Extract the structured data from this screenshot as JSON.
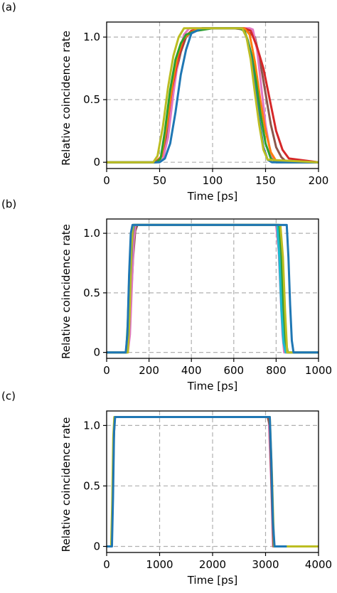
{
  "chart_data": [
    {
      "type": "line",
      "panel_label": "(a)",
      "xlabel": "Time [ps]",
      "ylabel": "Relative coincidence rate",
      "xlim": [
        0,
        200
      ],
      "ylim": [
        -0.05,
        1.12
      ],
      "xticks": [
        0,
        50,
        100,
        150,
        200
      ],
      "xtick_labels": [
        "0",
        "50",
        "100",
        "150",
        "200"
      ],
      "yticks": [
        0,
        0.5,
        1.0
      ],
      "ytick_labels": [
        "0",
        "0.5",
        "1.0"
      ],
      "grid": true,
      "series": [
        {
          "color": "#8c564b",
          "x": [
            0,
            45,
            50,
            55,
            60,
            65,
            70,
            75,
            80,
            90,
            100,
            110,
            120,
            130,
            140,
            145,
            150,
            155,
            160,
            165,
            170,
            200
          ],
          "y": [
            0,
            0,
            0.02,
            0.12,
            0.45,
            0.7,
            0.88,
            1.0,
            1.04,
            1.07,
            1.07,
            1.07,
            1.07,
            1.06,
            1.0,
            0.8,
            0.55,
            0.3,
            0.12,
            0.04,
            0,
            0
          ]
        },
        {
          "color": "#e377c2",
          "x": [
            0,
            48,
            53,
            58,
            63,
            68,
            73,
            78,
            85,
            100,
            115,
            130,
            135,
            138,
            142,
            146,
            150,
            155,
            160,
            200
          ],
          "y": [
            0,
            0,
            0.02,
            0.2,
            0.55,
            0.85,
            1.02,
            1.07,
            1.07,
            1.07,
            1.07,
            1.07,
            1.07,
            1.06,
            0.9,
            0.6,
            0.3,
            0.06,
            0,
            0
          ]
        },
        {
          "color": "#d62728",
          "x": [
            0,
            46,
            52,
            57,
            62,
            68,
            74,
            80,
            90,
            100,
            110,
            120,
            130,
            136,
            142,
            148,
            154,
            160,
            166,
            172,
            200
          ],
          "y": [
            0,
            0,
            0.05,
            0.3,
            0.6,
            0.85,
            1.0,
            1.05,
            1.07,
            1.07,
            1.07,
            1.07,
            1.07,
            1.05,
            0.92,
            0.75,
            0.5,
            0.25,
            0.1,
            0.03,
            0
          ]
        },
        {
          "color": "#ff7f0e",
          "x": [
            0,
            47,
            52,
            57,
            62,
            67,
            72,
            78,
            85,
            95,
            105,
            115,
            125,
            130,
            135,
            140,
            145,
            150,
            155,
            160,
            200
          ],
          "y": [
            0,
            0,
            0.05,
            0.3,
            0.62,
            0.85,
            0.98,
            1.03,
            1.06,
            1.07,
            1.07,
            1.07,
            1.07,
            1.07,
            1.02,
            0.8,
            0.5,
            0.25,
            0.08,
            0.01,
            0
          ]
        },
        {
          "color": "#2ca02c",
          "x": [
            0,
            47,
            51,
            55,
            60,
            65,
            70,
            75,
            85,
            100,
            115,
            125,
            130,
            133,
            137,
            141,
            145,
            150,
            155,
            160,
            200
          ],
          "y": [
            0,
            0,
            0.03,
            0.25,
            0.58,
            0.82,
            0.95,
            1.02,
            1.05,
            1.07,
            1.07,
            1.07,
            1.05,
            0.98,
            0.85,
            0.65,
            0.4,
            0.15,
            0.03,
            0,
            0
          ]
        },
        {
          "color": "#1f77b4",
          "x": [
            0,
            50,
            55,
            60,
            65,
            70,
            75,
            80,
            90,
            100,
            110,
            120,
            128,
            132,
            136,
            140,
            144,
            148,
            152,
            156,
            200
          ],
          "y": [
            0,
            0,
            0.03,
            0.15,
            0.4,
            0.7,
            0.9,
            1.03,
            1.07,
            1.07,
            1.07,
            1.07,
            1.07,
            1.0,
            0.85,
            0.6,
            0.35,
            0.12,
            0.02,
            0,
            0
          ]
        },
        {
          "color": "#bcbd22",
          "x": [
            0,
            44,
            48,
            53,
            58,
            63,
            68,
            73,
            78,
            90,
            105,
            120,
            128,
            132,
            136,
            140,
            144,
            148,
            152,
            200
          ],
          "y": [
            0,
            0,
            0.05,
            0.28,
            0.6,
            0.85,
            1.0,
            1.07,
            1.07,
            1.07,
            1.07,
            1.07,
            1.07,
            1.0,
            0.82,
            0.55,
            0.3,
            0.1,
            0.02,
            0
          ]
        }
      ]
    },
    {
      "type": "line",
      "panel_label": "(b)",
      "xlabel": "Time [ps]",
      "ylabel": "Relative coincidence rate",
      "xlim": [
        0,
        1000
      ],
      "ylim": [
        -0.05,
        1.12
      ],
      "xticks": [
        0,
        200,
        400,
        600,
        800,
        1000
      ],
      "xtick_labels": [
        "0",
        "200",
        "400",
        "600",
        "800",
        "1000"
      ],
      "yticks": [
        0,
        0.5,
        1.0
      ],
      "ytick_labels": [
        "0",
        "0.5",
        "1.0"
      ],
      "grid": true,
      "series": [
        {
          "color": "#8c564b",
          "x": [
            0,
            95,
            105,
            115,
            125,
            135,
            145,
            800,
            815,
            825,
            835,
            845,
            1000
          ],
          "y": [
            0,
            0,
            0.1,
            0.45,
            0.8,
            1.02,
            1.07,
            1.07,
            0.9,
            0.5,
            0.2,
            0,
            0
          ]
        },
        {
          "color": "#e377c2",
          "x": [
            0,
            100,
            110,
            120,
            128,
            136,
            800,
            812,
            822,
            830,
            838,
            1000
          ],
          "y": [
            0,
            0,
            0.15,
            0.6,
            0.95,
            1.07,
            1.07,
            0.85,
            0.45,
            0.15,
            0,
            0
          ]
        },
        {
          "color": "#7f7f7f",
          "x": [
            0,
            98,
            106,
            114,
            122,
            130,
            810,
            822,
            832,
            842,
            852,
            1000
          ],
          "y": [
            0,
            0,
            0.2,
            0.65,
            0.97,
            1.07,
            1.07,
            0.8,
            0.4,
            0.1,
            0,
            0
          ]
        },
        {
          "color": "#2ca02c",
          "x": [
            0,
            92,
            100,
            108,
            116,
            124,
            815,
            825,
            835,
            845,
            855,
            1000
          ],
          "y": [
            0,
            0,
            0.25,
            0.7,
            1.0,
            1.07,
            1.07,
            0.85,
            0.4,
            0.1,
            0,
            0
          ]
        },
        {
          "color": "#17becf",
          "x": [
            0,
            95,
            103,
            111,
            119,
            127,
            805,
            815,
            825,
            835,
            845,
            1000
          ],
          "y": [
            0,
            0,
            0.2,
            0.68,
            1.0,
            1.07,
            1.07,
            0.8,
            0.35,
            0.08,
            0,
            0
          ]
        },
        {
          "color": "#bcbd22",
          "x": [
            0,
            100,
            108,
            116,
            124,
            820,
            832,
            842,
            852,
            1000
          ],
          "y": [
            0,
            0,
            0.3,
            0.85,
            1.07,
            1.07,
            0.8,
            0.35,
            0,
            0
          ]
        },
        {
          "color": "#1f77b4",
          "x": [
            0,
            90,
            98,
            106,
            114,
            122,
            850,
            858,
            866,
            874,
            882,
            1000
          ],
          "y": [
            0,
            0,
            0.15,
            0.65,
            1.0,
            1.07,
            1.07,
            0.8,
            0.4,
            0.1,
            0,
            0
          ]
        }
      ]
    },
    {
      "type": "line",
      "panel_label": "(c)",
      "xlabel": "Time [ps]",
      "ylabel": "Relative coincidence rate",
      "xlim": [
        0,
        4000
      ],
      "ylim": [
        -0.05,
        1.12
      ],
      "xticks": [
        0,
        1000,
        2000,
        3000,
        4000
      ],
      "xtick_labels": [
        "0",
        "1000",
        "2000",
        "3000",
        "4000"
      ],
      "yticks": [
        0,
        0.5,
        1.0
      ],
      "ytick_labels": [
        "0",
        "0.5",
        "1.0"
      ],
      "grid": true,
      "series": [
        {
          "color": "#e377c2",
          "x": [
            0,
            90,
            110,
            130,
            150,
            3000,
            3060,
            3110,
            3140,
            4000
          ],
          "y": [
            0,
            0,
            0.3,
            0.85,
            1.07,
            1.07,
            1.07,
            0.5,
            0,
            0
          ]
        },
        {
          "color": "#8c564b",
          "x": [
            0,
            95,
            115,
            135,
            155,
            3040,
            3080,
            3120,
            3150,
            4000
          ],
          "y": [
            0,
            0,
            0.4,
            0.9,
            1.07,
            1.07,
            1.0,
            0.4,
            0,
            0
          ]
        },
        {
          "color": "#bcbd22",
          "x": [
            0,
            85,
            105,
            125,
            145,
            2980,
            3000,
            3080,
            3120,
            3160,
            4000
          ],
          "y": [
            0,
            0,
            0.35,
            0.9,
            1.07,
            1.07,
            1.07,
            1.07,
            0.6,
            0,
            0
          ]
        },
        {
          "color": "#1f77b4",
          "x": [
            0,
            100,
            120,
            140,
            160,
            3080,
            3110,
            3140,
            3170,
            3400
          ],
          "y": [
            0,
            0,
            0.4,
            0.95,
            1.07,
            1.07,
            0.7,
            0.2,
            0,
            0
          ]
        }
      ]
    }
  ]
}
